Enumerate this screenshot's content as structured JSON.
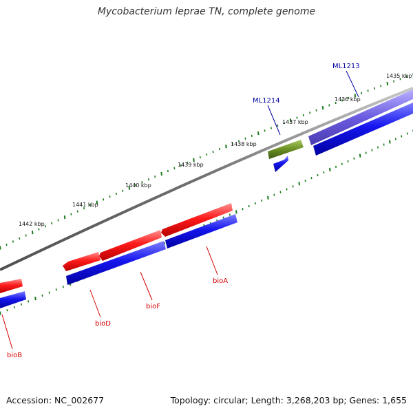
{
  "title": "Mycobacterium leprae TN, complete genome",
  "footer": {
    "accession": "Accession: NC_002677",
    "summary": "Topology: circular; Length: 3,268,203 bp; Genes: 1,655"
  },
  "colors": {
    "backbone": "#808080",
    "tick": "#1a7a1a",
    "forward_cds": "#ff1a1a",
    "reverse_cds": "#1515ee",
    "highlight_outer": "#6a5ce0",
    "highlight_inner": "#6b8e23",
    "red_label": "#d40000",
    "blue_label": "#00009f"
  },
  "ticks": [
    {
      "label": "1435 kbp"
    },
    {
      "label": "1436 kbp"
    },
    {
      "label": "1437 kbp"
    },
    {
      "label": "1438 kbp"
    },
    {
      "label": "1439 kbp"
    },
    {
      "label": "1440 kbp"
    },
    {
      "label": "1441 kbp"
    },
    {
      "label": "1442 kbp"
    }
  ],
  "features": [
    {
      "name": "bioB",
      "strand": "forward",
      "label_color": "red_label"
    },
    {
      "name": "bioD",
      "strand": "forward",
      "label_color": "red_label"
    },
    {
      "name": "bioF",
      "strand": "forward",
      "label_color": "red_label"
    },
    {
      "name": "bioA",
      "strand": "forward",
      "label_color": "red_label"
    },
    {
      "name": "ML1214",
      "strand": "forward",
      "label_color": "blue_label"
    },
    {
      "name": "ML1213",
      "strand": "reverse",
      "label_color": "blue_label"
    }
  ]
}
